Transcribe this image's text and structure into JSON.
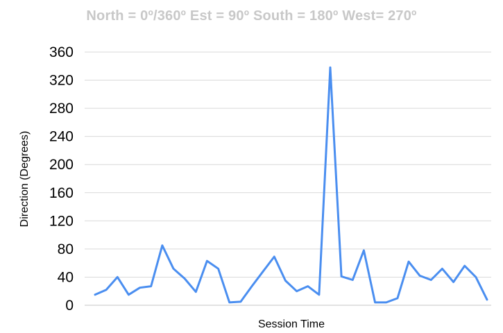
{
  "chart_data": {
    "type": "line",
    "title": "North = 0º/360º Est = 90º South = 180º West= 270º",
    "xlabel": "Session Time",
    "ylabel": "Direction (Degrees)",
    "ylim": [
      0,
      360
    ],
    "yticks": [
      "0",
      "40",
      "80",
      "120",
      "160",
      "200",
      "240",
      "280",
      "320",
      "360"
    ],
    "grid": true,
    "legend": "none",
    "colors": {
      "line": "#4a8ef0",
      "grid": "#d9d9d9",
      "title": "#c8c8c8"
    },
    "series": [
      {
        "values": [
          15,
          22,
          40,
          15,
          25,
          27,
          85,
          52,
          38,
          19,
          63,
          52,
          4,
          5,
          27,
          48,
          69,
          35,
          20,
          27,
          15,
          338,
          41,
          36,
          78,
          4,
          4,
          10,
          62,
          42,
          36,
          52,
          33,
          56,
          40,
          8
        ]
      }
    ]
  }
}
